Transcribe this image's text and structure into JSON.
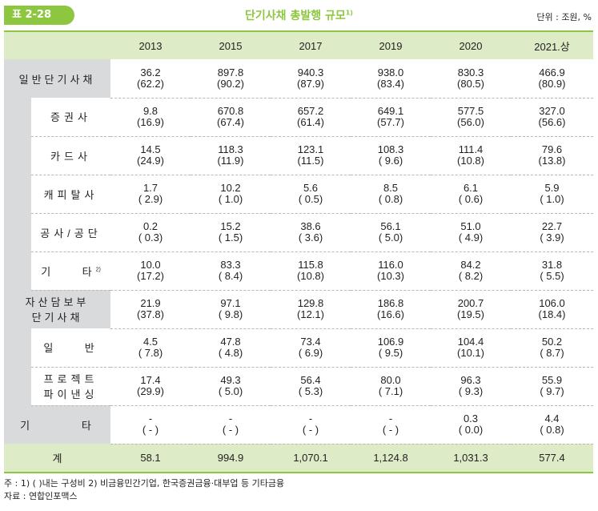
{
  "header": {
    "badge": "표 2-28",
    "title": "단기사채 총발행 규모",
    "title_note": "1)",
    "unit": "단위 : 조원, %"
  },
  "columns": [
    "2013",
    "2015",
    "2017",
    "2019",
    "2020",
    "2021.상"
  ],
  "rows": [
    {
      "label": "일반단기사채",
      "level": 0,
      "values": [
        "36.2",
        "897.8",
        "940.3",
        "938.0",
        "830.3",
        "466.9"
      ],
      "shares": [
        "(62.2)",
        "(90.2)",
        "(87.9)",
        "(83.4)",
        "(80.5)",
        "(80.9)"
      ]
    },
    {
      "label": "증권사",
      "level": 1,
      "values": [
        "9.8",
        "670.8",
        "657.2",
        "649.1",
        "577.5",
        "327.0"
      ],
      "shares": [
        "(16.9)",
        "(67.4)",
        "(61.4)",
        "(57.7)",
        "(56.0)",
        "(56.6)"
      ]
    },
    {
      "label": "카드사",
      "level": 1,
      "values": [
        "14.5",
        "118.3",
        "123.1",
        "108.3",
        "111.4",
        "79.6"
      ],
      "shares": [
        "(24.9)",
        "(11.9)",
        "(11.5)",
        "( 9.6)",
        "(10.8)",
        "(13.8)"
      ]
    },
    {
      "label": "캐피탈사",
      "level": 1,
      "values": [
        "1.7",
        "10.2",
        "5.6",
        "8.5",
        "6.1",
        "5.9"
      ],
      "shares": [
        "( 2.9)",
        "( 1.0)",
        "( 0.5)",
        "( 0.8)",
        "( 0.6)",
        "( 1.0)"
      ]
    },
    {
      "label": "공사/공단",
      "level": 1,
      "values": [
        "0.2",
        "15.2",
        "38.6",
        "56.1",
        "51.0",
        "22.7"
      ],
      "shares": [
        "( 0.3)",
        "( 1.5)",
        "( 3.6)",
        "( 5.0)",
        "( 4.9)",
        "( 3.9)"
      ]
    },
    {
      "label": "기    타",
      "label_note": "2)",
      "level": 1,
      "values": [
        "10.0",
        "83.3",
        "115.8",
        "116.0",
        "84.2",
        "31.8"
      ],
      "shares": [
        "(17.2)",
        "( 8.4)",
        "(10.8)",
        "(10.3)",
        "( 8.2)",
        "( 5.5)"
      ]
    },
    {
      "label": "자산담보부",
      "label2": "단기사채",
      "level": 0,
      "values": [
        "21.9",
        "97.1",
        "129.8",
        "186.8",
        "200.7",
        "106.0"
      ],
      "shares": [
        "(37.8)",
        "( 9.8)",
        "(12.1)",
        "(16.6)",
        "(19.5)",
        "(18.4)"
      ]
    },
    {
      "label": "일    반",
      "level": 1,
      "values": [
        "4.5",
        "47.8",
        "73.4",
        "106.9",
        "104.4",
        "50.2"
      ],
      "shares": [
        "( 7.8)",
        "( 4.8)",
        "( 6.9)",
        "( 9.5)",
        "(10.1)",
        "( 8.7)"
      ]
    },
    {
      "label": "프로젝트",
      "label2": "파이낸싱",
      "level": 1,
      "values": [
        "17.4",
        "49.3",
        "56.4",
        "80.0",
        "96.3",
        "55.9"
      ],
      "shares": [
        "(29.9)",
        "( 5.0)",
        "( 5.3)",
        "( 7.1)",
        "( 9.3)",
        "( 9.7)"
      ]
    },
    {
      "label": "기        타",
      "level": 0,
      "values": [
        "-",
        "-",
        "-",
        "-",
        "0.3",
        "4.4"
      ],
      "shares": [
        "( - )",
        "( - )",
        "( - )",
        "( - )",
        "( 0.0)",
        "( 0.8)"
      ]
    }
  ],
  "total": {
    "label": "계",
    "values": [
      "58.1",
      "994.9",
      "1,070.1",
      "1,124.8",
      "1,031.3",
      "577.4"
    ]
  },
  "notes": {
    "line1": "주 : 1) ( )내는 구성비    2) 비금융민간기업, 한국증권금융·대부업 등 기타금융",
    "line2": "자료 : 연합인포맥스"
  },
  "colors": {
    "accent": "#8dc63f",
    "header_bg": "#ddebc7",
    "label_bg": "#d9dadb"
  }
}
